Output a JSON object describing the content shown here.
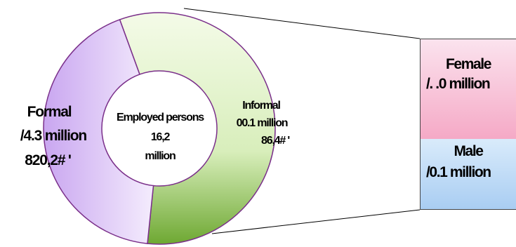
{
  "chart_data": [
    {
      "type": "pie",
      "style": "donut",
      "center_label": [
        "Employed persons",
        "16,2",
        "million"
      ],
      "slices": [
        {
          "label": "Informal",
          "value_text": "00.1 million",
          "share_text": "86,4# '",
          "share": 0.572,
          "color": "#cfe8a8"
        },
        {
          "label": "Formal",
          "value_text": "/4.3 million",
          "share_text": "820,2# '",
          "share": 0.428,
          "color": "#dcc6f7"
        }
      ]
    },
    {
      "type": "bar",
      "orientation": "stacked-vertical",
      "breakdown_of": "Informal",
      "segments": [
        {
          "label": "Female",
          "value_text": "/. .0 million",
          "share": 0.5,
          "color": "#f7b6cf"
        },
        {
          "label": "Male",
          "value_text": "/0.1 million",
          "share": 0.5,
          "color": "#b6d7f5"
        }
      ]
    }
  ],
  "colors": {
    "outline": "#7a2f8a",
    "connector": "#000000"
  }
}
